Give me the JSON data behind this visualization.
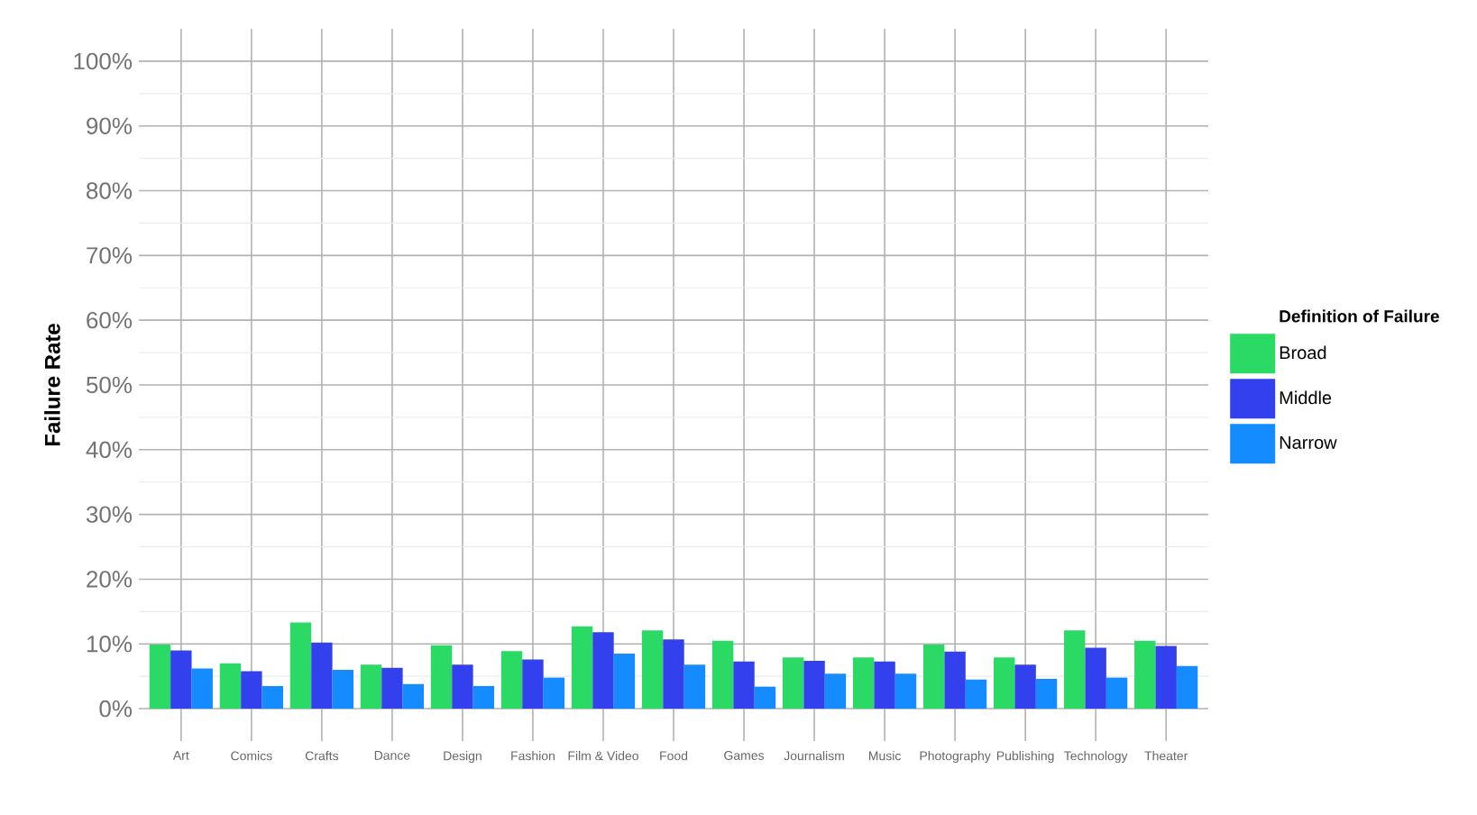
{
  "chart_data": {
    "type": "bar",
    "ylabel": "Failure Rate",
    "legend_title": "Definition of Failure",
    "categories": [
      "Art",
      "Comics",
      "Crafts",
      "Dance",
      "Design",
      "Fashion",
      "Film & Video",
      "Food",
      "Games",
      "Journalism",
      "Music",
      "Photography",
      "Publishing",
      "Technology",
      "Theater"
    ],
    "series": [
      {
        "name": "Broad",
        "color": "#2bd965",
        "values": [
          9.9,
          7.0,
          13.3,
          6.8,
          9.8,
          8.9,
          12.7,
          12.1,
          10.5,
          7.9,
          7.9,
          9.9,
          7.9,
          12.1,
          10.5
        ]
      },
      {
        "name": "Middle",
        "color": "#3340ee",
        "values": [
          9.0,
          5.8,
          10.2,
          6.3,
          6.8,
          7.6,
          11.8,
          10.7,
          7.3,
          7.4,
          7.3,
          8.8,
          6.8,
          9.4,
          9.7
        ]
      },
      {
        "name": "Narrow",
        "color": "#148cff",
        "values": [
          6.2,
          3.5,
          6.0,
          3.8,
          3.5,
          4.8,
          8.5,
          6.8,
          3.4,
          5.4,
          5.4,
          4.5,
          4.6,
          4.8,
          6.6
        ]
      }
    ],
    "ylim": [
      -5,
      105
    ],
    "yticks": [
      {
        "value": 0,
        "label": "0%"
      },
      {
        "value": 10,
        "label": "10%"
      },
      {
        "value": 20,
        "label": "20%"
      },
      {
        "value": 30,
        "label": "30%"
      },
      {
        "value": 40,
        "label": "40%"
      },
      {
        "value": 50,
        "label": "50%"
      },
      {
        "value": 60,
        "label": "60%"
      },
      {
        "value": 70,
        "label": "70%"
      },
      {
        "value": 80,
        "label": "80%"
      },
      {
        "value": 90,
        "label": "90%"
      },
      {
        "value": 100,
        "label": "100%"
      }
    ],
    "grid": true,
    "legend": "right"
  }
}
